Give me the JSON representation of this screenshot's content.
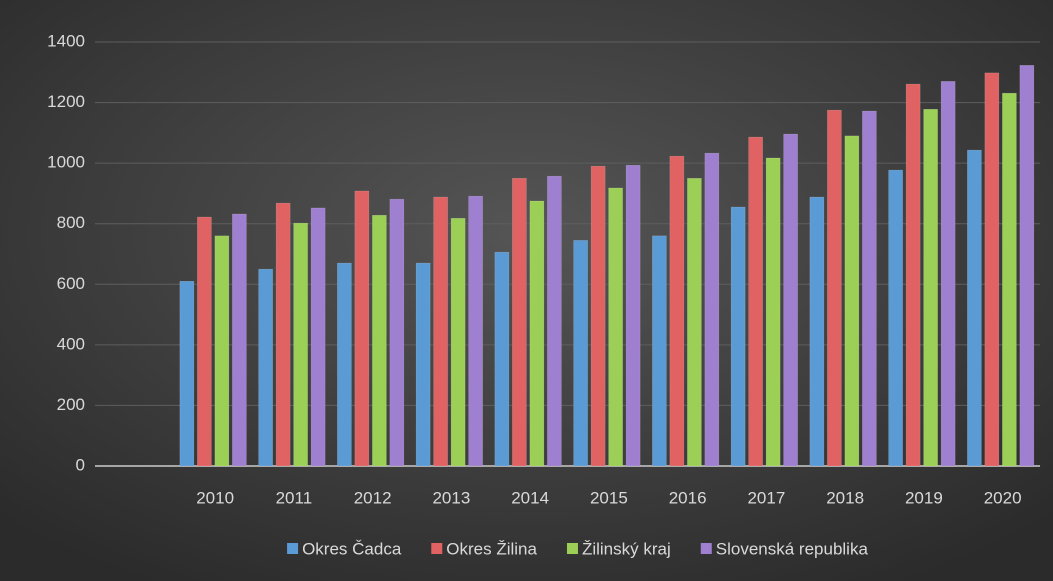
{
  "chart_data": {
    "type": "bar",
    "categories": [
      null,
      "2010",
      "2011",
      "2012",
      "2013",
      "2014",
      "2015",
      "2016",
      "2017",
      "2018",
      "2019",
      "2020"
    ],
    "series": [
      {
        "name": "Okres Čadca",
        "color": "#5b9bd5",
        "values": [
          null,
          610,
          650,
          670,
          670,
          706,
          745,
          760,
          855,
          888,
          977,
          1043
        ]
      },
      {
        "name": "Okres Žilina",
        "color": "#e06262",
        "values": [
          null,
          822,
          868,
          908,
          888,
          950,
          990,
          1023,
          1086,
          1175,
          1261,
          1298
        ]
      },
      {
        "name": "Žilinský kraj",
        "color": "#9ccf55",
        "values": [
          null,
          760,
          802,
          828,
          818,
          875,
          918,
          950,
          1017,
          1090,
          1178,
          1231
        ]
      },
      {
        "name": "Slovenská republika",
        "color": "#9f7fcf",
        "values": [
          null,
          832,
          852,
          881,
          891,
          957,
          993,
          1033,
          1096,
          1172,
          1270,
          1323
        ]
      }
    ],
    "ylim": [
      0,
      1400
    ],
    "yticks": [
      0,
      200,
      400,
      600,
      800,
      1000,
      1200,
      1400
    ],
    "grid": true,
    "legend": "bottom"
  }
}
